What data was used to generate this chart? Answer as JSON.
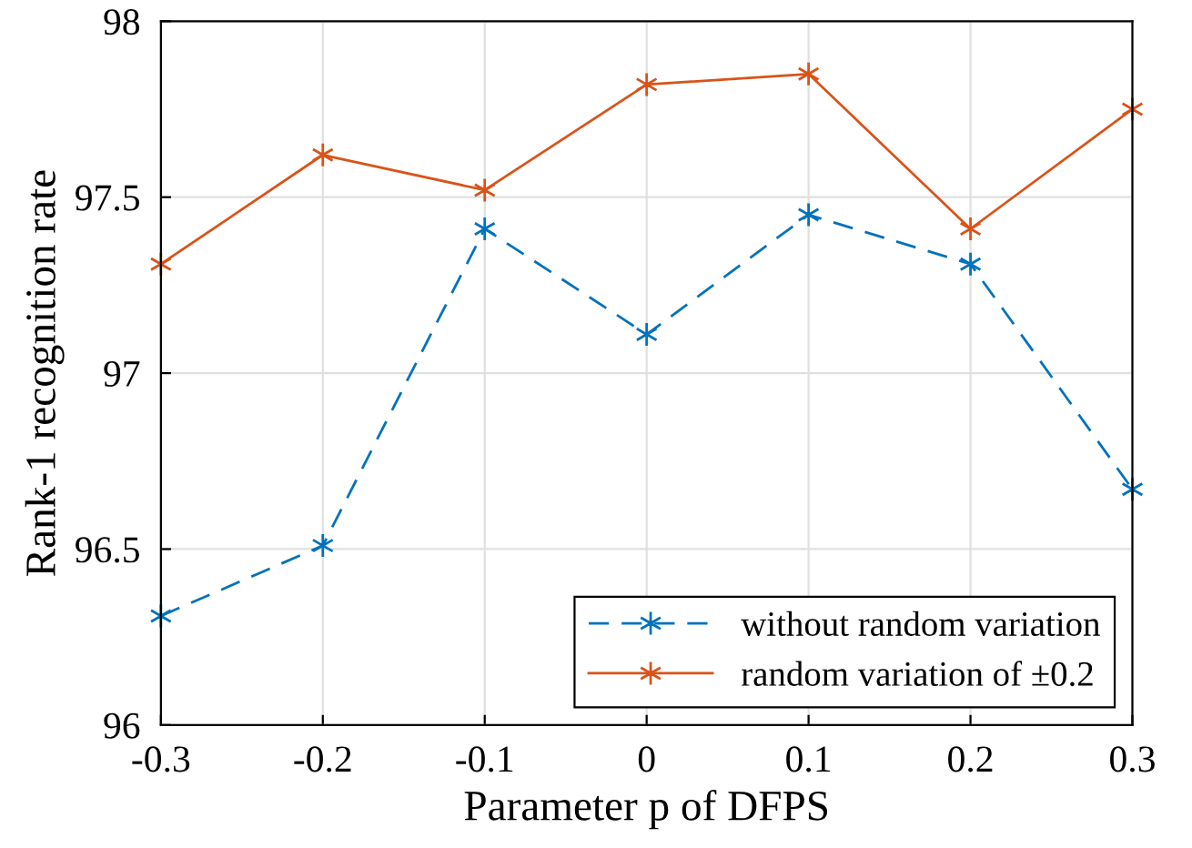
{
  "chart_data": {
    "type": "line",
    "xlabel": "Parameter p of DFPS",
    "ylabel": "Rank-1 recognition rate",
    "x": [
      -0.3,
      -0.2,
      -0.1,
      0,
      0.1,
      0.2,
      0.3
    ],
    "series": [
      {
        "name": "without random variation",
        "color": "#0072bd",
        "line_style": "dashed",
        "marker": "cross",
        "values": [
          96.31,
          96.51,
          97.41,
          97.11,
          97.45,
          97.31,
          96.67
        ]
      },
      {
        "name": "random variation of ±0.2",
        "color": "#d95319",
        "line_style": "solid",
        "marker": "cross",
        "values": [
          97.31,
          97.62,
          97.52,
          97.82,
          97.85,
          97.41,
          97.75
        ]
      }
    ],
    "xlim": [
      -0.3,
      0.3
    ],
    "xticks": [
      -0.3,
      -0.2,
      -0.1,
      0,
      0.1,
      0.2,
      0.3
    ],
    "ylim": [
      96,
      98
    ],
    "yticks": [
      96,
      96.5,
      97,
      97.5,
      98
    ],
    "grid": true,
    "legend": "bottom right"
  }
}
